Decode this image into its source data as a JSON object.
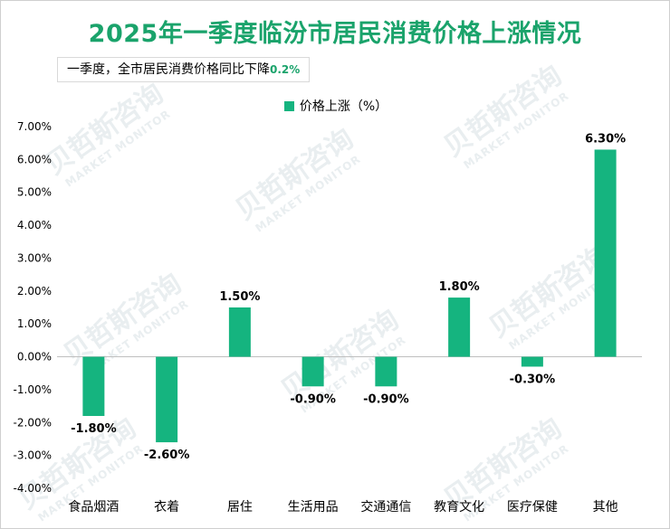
{
  "title": "2025年一季度临汾市居民消费价格上涨情况",
  "note": {
    "text": "一季度，全市居民消费价格同比下降",
    "highlight": "0.2%"
  },
  "colors": {
    "title": "#1aa36b",
    "bar": "#15b47f",
    "highlight": "#1aa36b"
  },
  "watermark": {
    "text": "贝哲斯咨询",
    "subtext": "MARKET MONITOR"
  },
  "chart_data": {
    "type": "bar",
    "legend_position": "top",
    "grid": false,
    "ylim": [
      -4,
      7
    ],
    "yticks": [
      "7.00%",
      "6.00%",
      "5.00%",
      "4.00%",
      "3.00%",
      "2.00%",
      "1.00%",
      "0.00%",
      "-1.00%",
      "-2.00%",
      "-3.00%",
      "-4.00%"
    ],
    "categories": [
      "食品烟酒",
      "衣着",
      "居住",
      "生活用品",
      "交通通信",
      "教育文化",
      "医疗保健",
      "其他"
    ],
    "series": [
      {
        "name": "价格上涨（%）",
        "values": [
          -1.8,
          -2.6,
          1.5,
          -0.9,
          -0.9,
          1.8,
          -0.3,
          6.3
        ],
        "labels": [
          "-1.80%",
          "-2.60%",
          "1.50%",
          "-0.90%",
          "-0.90%",
          "1.80%",
          "-0.30%",
          "6.30%"
        ]
      }
    ]
  }
}
